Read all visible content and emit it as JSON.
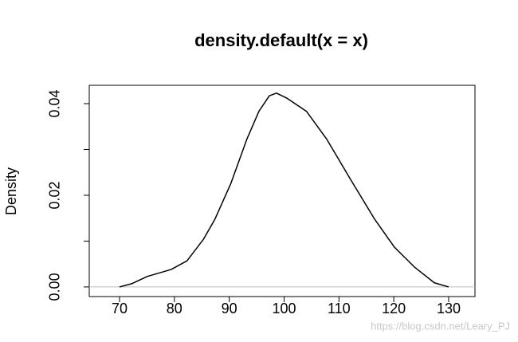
{
  "chart_data": {
    "type": "line",
    "title": "density.default(x = x)",
    "y_label": "Density",
    "x": [
      70,
      72.2,
      75.1,
      79.4,
      82.3,
      85.3,
      87.4,
      90.3,
      93.2,
      95.4,
      97.3,
      98.6,
      100.5,
      104.1,
      107.8,
      112.1,
      116.5,
      120.1,
      123.8,
      127.4,
      130
    ],
    "series": [
      {
        "color": "#000000",
        "values": [
          0,
          0.0007,
          0.0023,
          0.0038,
          0.0057,
          0.0104,
          0.0148,
          0.0226,
          0.0322,
          0.0383,
          0.0417,
          0.0423,
          0.0412,
          0.0383,
          0.0322,
          0.0235,
          0.0148,
          0.0087,
          0.0043,
          0.0009,
          0
        ]
      }
    ],
    "xlim": [
      64.48,
      134.8
    ],
    "ylim": [
      -0.0021,
      0.044
    ],
    "xticks": [
      70,
      80,
      90,
      100,
      110,
      120,
      130
    ],
    "yticks": [
      {
        "value": 0,
        "label": "0.00"
      },
      {
        "value": 0.01,
        "label": null
      },
      {
        "value": 0.02,
        "label": "0.02"
      },
      {
        "value": 0.03,
        "label": null
      },
      {
        "value": 0.04,
        "label": "0.04"
      }
    ],
    "zero_line": true,
    "zero_line_color": "#bebebe",
    "watermark": "https://blog.csdn.net/Leary_PJ"
  }
}
